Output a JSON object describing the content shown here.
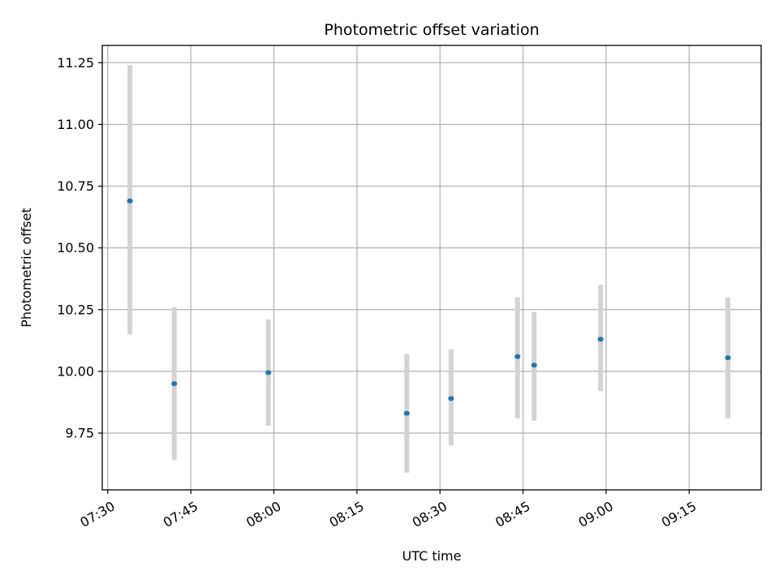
{
  "chart_data": {
    "type": "scatter",
    "title": "Photometric offset variation",
    "xlabel": "UTC time",
    "ylabel": "Photometric offset",
    "x_axis_type": "time",
    "xlim": [
      "07:29",
      "09:28"
    ],
    "ylim": [
      9.52,
      11.32
    ],
    "xticks": [
      "07:30",
      "07:45",
      "08:00",
      "08:15",
      "08:30",
      "08:45",
      "09:00",
      "09:15"
    ],
    "yticks": [
      9.75,
      10.0,
      10.25,
      10.5,
      10.75,
      11.0,
      11.25
    ],
    "ytick_labels": [
      "9.75",
      "10.00",
      "10.25",
      "10.50",
      "10.75",
      "11.00",
      "11.25"
    ],
    "grid": true,
    "points": [
      {
        "x": "07:34",
        "y": 10.69,
        "err_low": 10.15,
        "err_high": 11.24
      },
      {
        "x": "07:42",
        "y": 9.95,
        "err_low": 9.64,
        "err_high": 10.26
      },
      {
        "x": "07:59",
        "y": 9.995,
        "err_low": 9.78,
        "err_high": 10.21
      },
      {
        "x": "08:24",
        "y": 9.83,
        "err_low": 9.59,
        "err_high": 10.07
      },
      {
        "x": "08:32",
        "y": 9.89,
        "err_low": 9.7,
        "err_high": 10.09
      },
      {
        "x": "08:44",
        "y": 10.06,
        "err_low": 9.81,
        "err_high": 10.3
      },
      {
        "x": "08:47",
        "y": 10.025,
        "err_low": 9.8,
        "err_high": 10.24
      },
      {
        "x": "08:59",
        "y": 10.13,
        "err_low": 9.92,
        "err_high": 10.35
      },
      {
        "x": "09:22",
        "y": 10.055,
        "err_low": 9.81,
        "err_high": 10.3
      }
    ],
    "colors": {
      "point": "#1f77b4",
      "errorbar": "#d3d3d3",
      "grid": "#b0b0b0"
    }
  }
}
